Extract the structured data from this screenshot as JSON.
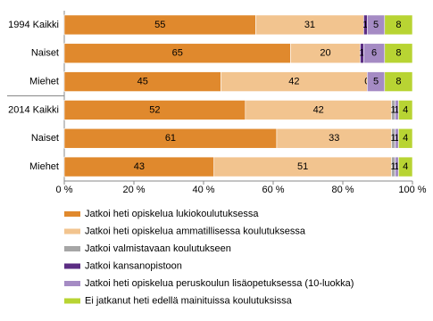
{
  "chart_data": {
    "type": "stacked-bar-horizontal",
    "categories": [
      "1994 Kaikki",
      "Naiset",
      "Miehet",
      "2014 Kaikki",
      "Naiset",
      "Miehet"
    ],
    "series": [
      {
        "name": "Jatkoi heti opiskelua lukiokoulutuksessa",
        "color": "#e0892d",
        "values": [
          55,
          65,
          45,
          52,
          61,
          43
        ]
      },
      {
        "name": "Jatkoi heti opiskelua ammatillisessa koulutuksessa",
        "color": "#f2c48f",
        "values": [
          31,
          20,
          42,
          42,
          33,
          51
        ]
      },
      {
        "name": "Jatkoi valmistavaan koulutukseen",
        "color": "#a6a6a6",
        "values": [
          null,
          null,
          null,
          1,
          1,
          1
        ]
      },
      {
        "name": "Jatkoi kansanopistoon",
        "color": "#5b2d83",
        "values": [
          1,
          1,
          0,
          null,
          null,
          null
        ]
      },
      {
        "name": "Jatkoi heti opiskelua peruskoulun lisäopetuksessa (10-luokka)",
        "color": "#a58bc4",
        "values": [
          5,
          6,
          5,
          1,
          1,
          1
        ]
      },
      {
        "name": "Ei jatkanut heti edellä mainituissa koulutuksissa",
        "color": "#b8d433",
        "values": [
          8,
          8,
          8,
          4,
          4,
          4
        ]
      }
    ],
    "xlim": [
      0,
      100
    ],
    "xticks": [
      {
        "value": 0,
        "label": "0 %"
      },
      {
        "value": 20,
        "label": "20 %"
      },
      {
        "value": 40,
        "label": "40 %"
      },
      {
        "value": 60,
        "label": "60 %"
      },
      {
        "value": 80,
        "label": "80 %"
      },
      {
        "value": 100,
        "label": "100 %"
      }
    ]
  }
}
